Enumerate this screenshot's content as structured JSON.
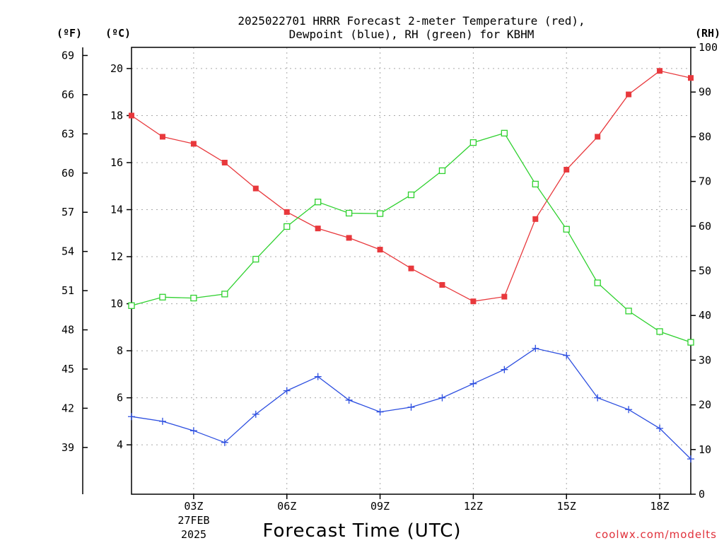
{
  "chart_data": {
    "type": "line",
    "title_line1": "2025022701 HRRR Forecast 2-meter Temperature (red),",
    "title_line2": "Dewpoint (blue), RH (green) for KBHM",
    "xlabel": "Forecast Time (UTC)",
    "x_ticks": [
      "03Z",
      "06Z",
      "09Z",
      "12Z",
      "15Z",
      "18Z"
    ],
    "x_date_label": "27FEB",
    "x_year_label": "2025",
    "x_hours": [
      1,
      2,
      3,
      4,
      5,
      6,
      7,
      8,
      9,
      10,
      11,
      12,
      13,
      14,
      15,
      16,
      17,
      18,
      19
    ],
    "xlim": [
      1,
      19
    ],
    "left_celsius_axis": {
      "unit_label": "(ºC)",
      "ticks": [
        "4",
        "6",
        "8",
        "10",
        "12",
        "14",
        "16",
        "18",
        "20"
      ],
      "ylim": [
        1.9,
        20.9
      ]
    },
    "left_fahrenheit_axis": {
      "unit_label": "(ºF)",
      "ticks": [
        "39",
        "42",
        "45",
        "48",
        "51",
        "54",
        "57",
        "60",
        "63",
        "66",
        "69"
      ]
    },
    "right_rh_axis": {
      "unit_label": "(RH)",
      "ticks": [
        "0",
        "10",
        "20",
        "30",
        "40",
        "50",
        "60",
        "70",
        "80",
        "90",
        "100"
      ],
      "ylim": [
        0,
        100
      ]
    },
    "grid": true,
    "series": [
      {
        "name": "Temperature",
        "color": "#e8383c",
        "marker": "filled-square",
        "axis": "celsius",
        "values": [
          18.0,
          17.1,
          16.8,
          16.0,
          14.9,
          13.9,
          13.2,
          12.8,
          12.3,
          11.5,
          10.8,
          10.1,
          10.3,
          13.6,
          15.7,
          17.1,
          18.9,
          19.9,
          19.6
        ]
      },
      {
        "name": "Dewpoint",
        "color": "#2c4ee0",
        "marker": "plus",
        "axis": "celsius",
        "values": [
          5.2,
          5.0,
          4.6,
          4.1,
          5.3,
          6.3,
          6.9,
          5.9,
          5.4,
          5.6,
          6.0,
          6.6,
          7.2,
          8.1,
          7.8,
          6.0,
          5.5,
          4.7,
          3.4
        ]
      },
      {
        "name": "RH",
        "color": "#2fd12f",
        "marker": "open-square",
        "axis": "rh",
        "values": [
          42.2,
          44.1,
          43.9,
          44.8,
          52.6,
          59.9,
          65.4,
          62.9,
          62.8,
          67.0,
          72.4,
          78.7,
          80.8,
          69.4,
          59.3,
          47.3,
          41.0,
          36.4,
          34.0
        ]
      }
    ]
  },
  "credit": "coolwx.com/modelts"
}
